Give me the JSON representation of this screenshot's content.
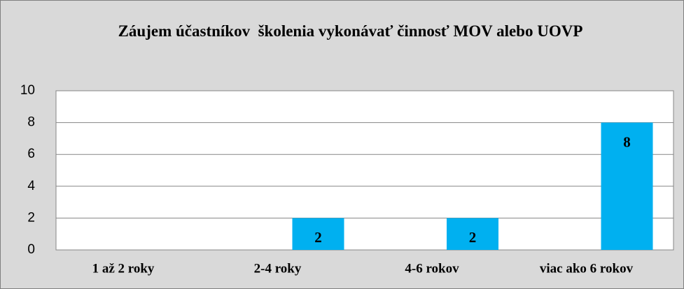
{
  "chart_data": {
    "type": "bar",
    "title": "Záujem účastníkov  školenia vykonávať činnosť MOV alebo UOVP",
    "categories": [
      "1 až 2 roky",
      "2-4 roky",
      "4-6 rokov",
      "viac ako 6 rokov"
    ],
    "values": [
      0,
      2,
      2,
      8
    ],
    "color": "#00b0f0",
    "ylim": [
      0,
      10
    ],
    "yticks": [
      0,
      2,
      4,
      6,
      8,
      10
    ],
    "grid": true
  }
}
